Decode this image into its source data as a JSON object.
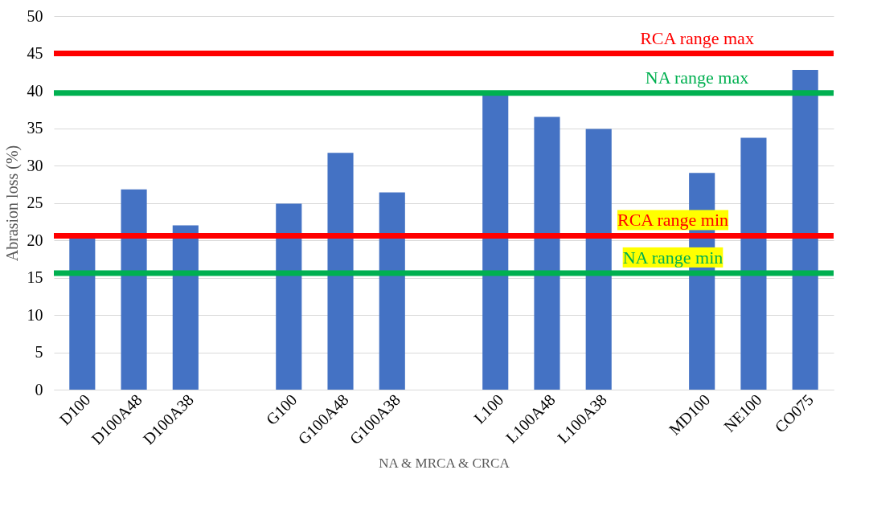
{
  "chart_data": {
    "type": "bar",
    "xlabel": "NA & MRCA & CRCA",
    "ylabel": "Abrasion loss (%)",
    "categories": [
      "D100",
      "D100A48",
      "D100A38",
      null,
      "G100",
      "G100A48",
      "G100A38",
      null,
      "L100",
      "L100A48",
      "L100A38",
      null,
      "MD100",
      "NE100",
      "CO075"
    ],
    "series": [
      {
        "color": "#4472c4",
        "values": [
          20.5,
          26.8,
          22.0,
          null,
          24.9,
          31.7,
          26.4,
          null,
          39.8,
          36.5,
          34.9,
          null,
          29,
          33.7,
          42.8
        ]
      }
    ],
    "ylim": [
      0,
      50
    ],
    "yticks": [
      0,
      5,
      10,
      15,
      20,
      25,
      30,
      35,
      40,
      45,
      50
    ],
    "grid": "y",
    "ref_lines": [
      {
        "axis": "y",
        "value": 45.0,
        "label": "RCA range max",
        "color": "#ff0000"
      },
      {
        "axis": "y",
        "value": 39.7,
        "label": "NA range max",
        "color": "#00b050"
      },
      {
        "axis": "y",
        "value": 20.6,
        "label": "RCA range min",
        "color": "#ff0000"
      },
      {
        "axis": "y",
        "value": 15.6,
        "label": "NA range min",
        "color": "#00b050"
      }
    ]
  }
}
